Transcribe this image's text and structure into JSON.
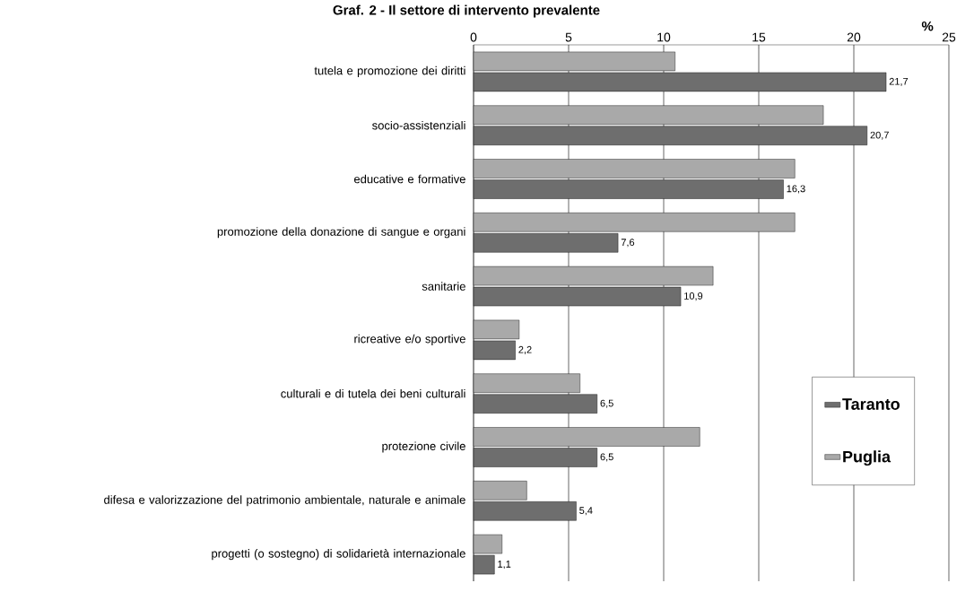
{
  "chart_data": {
    "type": "bar",
    "orientation": "horizontal",
    "title": "Graf. 2 - Il settore di intervento prevalente",
    "xlabel": "%",
    "categories": [
      "tutela e promozione dei diritti",
      "socio-assistenziali",
      "educative e formative",
      "promozione della donazione di sangue e organi",
      "sanitarie",
      "ricreative e/o sportive",
      "culturali e di tutela dei beni culturali",
      "protezione civile",
      "difesa e valorizzazione del patrimonio ambientale, naturale e animale",
      "progetti (o sostegno) di solidarietà internazionale"
    ],
    "series": [
      {
        "name": "Taranto",
        "color": "#6e6e6e",
        "values": [
          21.7,
          20.7,
          16.3,
          7.6,
          10.9,
          2.2,
          6.5,
          6.5,
          5.4,
          1.1
        ],
        "value_labels": [
          "21,7",
          "20,7",
          "16,3",
          "7,6",
          "10,9",
          "2,2",
          "6,5",
          "6,5",
          "5,4",
          "1,1"
        ]
      },
      {
        "name": "Puglia",
        "color": "#a9a9a9",
        "values": [
          10.6,
          18.4,
          16.9,
          16.9,
          12.6,
          2.4,
          5.6,
          11.9,
          2.8,
          1.5
        ]
      }
    ],
    "xlim": [
      0,
      25
    ],
    "xticks": [
      0,
      5,
      10,
      15,
      20,
      25
    ],
    "grid": "x",
    "legend": "right"
  }
}
